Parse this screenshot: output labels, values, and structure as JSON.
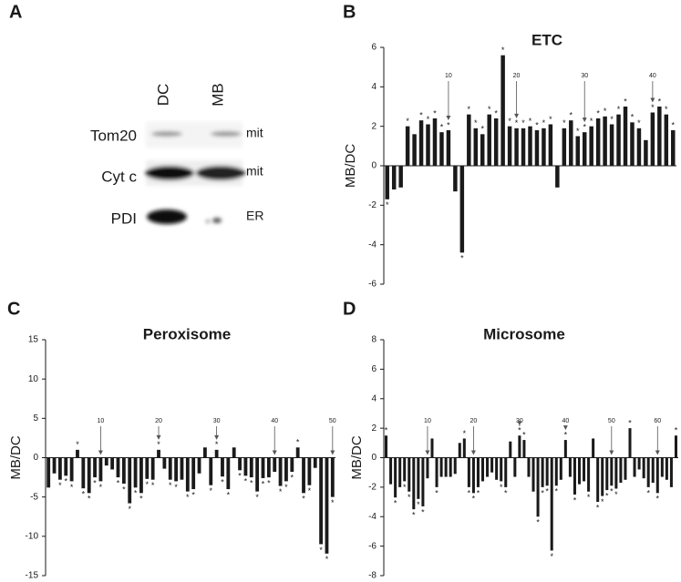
{
  "panel_labels": [
    "A",
    "B",
    "C",
    "D"
  ],
  "blot": {
    "lanes": [
      "DC",
      "MB"
    ],
    "rows": [
      "Tom20",
      "Cyt c",
      "PDI"
    ],
    "locations": [
      "mit",
      "mit",
      "ER"
    ]
  },
  "chart_data": [
    {
      "type": "bar",
      "title": "ETC",
      "y_label": "MB/DC",
      "color": "#1a1a1a",
      "categories": [
        null,
        null,
        null,
        null,
        null,
        null,
        null,
        null,
        null,
        "10",
        null,
        null,
        null,
        null,
        null,
        null,
        null,
        null,
        null,
        "20",
        null,
        null,
        null,
        null,
        null,
        null,
        null,
        null,
        null,
        "30",
        null,
        null,
        null,
        null,
        null,
        null,
        null,
        null,
        null,
        "40",
        null,
        null,
        null
      ],
      "values": [
        -1.7,
        -1.2,
        -1.1,
        2.0,
        1.6,
        2.3,
        2.1,
        2.4,
        1.7,
        1.8,
        -1.3,
        -4.4,
        2.6,
        1.9,
        1.6,
        2.6,
        2.4,
        5.6,
        2.0,
        1.9,
        1.9,
        2.0,
        1.8,
        1.9,
        2.1,
        -1.1,
        1.9,
        2.3,
        1.5,
        1.7,
        2.0,
        2.4,
        2.5,
        2.1,
        2.6,
        3.0,
        2.2,
        1.9,
        1.3,
        2.7,
        3.0,
        2.6,
        1.8
      ],
      "significance_marks": [
        "*",
        null,
        null,
        "*",
        null,
        "*",
        "*",
        "*",
        "*",
        "*",
        null,
        "*",
        "*",
        "*",
        "*",
        "*",
        "*",
        "*",
        "*",
        "*",
        "*",
        "*",
        "*",
        "*",
        "*",
        null,
        "*",
        "*",
        "*",
        "*",
        "*",
        "*",
        "*",
        "*",
        "*",
        "*",
        "*",
        "*",
        null,
        "*",
        "*",
        "*",
        "*"
      ],
      "ylim": [
        -6,
        6
      ],
      "yticks": [
        6,
        4,
        2,
        0,
        -2,
        -4,
        -6
      ]
    },
    {
      "type": "bar",
      "title": "Peroxisome",
      "y_label": "MB/DC",
      "color": "#1a1a1a",
      "categories": [
        null,
        null,
        null,
        null,
        null,
        null,
        null,
        null,
        null,
        "10",
        null,
        null,
        null,
        null,
        null,
        null,
        null,
        null,
        null,
        "20",
        null,
        null,
        null,
        null,
        null,
        null,
        null,
        null,
        null,
        "30",
        null,
        null,
        null,
        null,
        null,
        null,
        null,
        null,
        null,
        "40",
        null,
        null,
        null,
        null,
        null,
        null,
        null,
        null,
        null,
        "50"
      ],
      "values": [
        -3.8,
        -2.0,
        -2.8,
        -2.3,
        -3.0,
        1.0,
        -3.9,
        -4.5,
        -2.5,
        -3.0,
        -1.0,
        -1.5,
        -2.5,
        -3.3,
        -5.8,
        -3.8,
        -4.5,
        -2.7,
        -2.8,
        1.0,
        -1.4,
        -2.8,
        -3.0,
        -2.8,
        -4.3,
        -4.0,
        -2.0,
        1.3,
        -3.5,
        1.0,
        -2.4,
        -4.0,
        1.3,
        -1.6,
        -2.3,
        -2.5,
        -4.3,
        -2.6,
        -2.5,
        -1.8,
        -3.6,
        -3.0,
        -1.8,
        1.3,
        -4.5,
        -3.5,
        -1.3,
        -11.0,
        -12.2,
        -5.0
      ],
      "significance_marks": [
        null,
        null,
        "*",
        "*",
        "*",
        "*",
        "*",
        "*",
        "*",
        "*",
        null,
        null,
        "*",
        "*",
        "*",
        "*",
        "*",
        "*",
        "*",
        "*",
        null,
        "*",
        "*",
        null,
        "*",
        "*",
        null,
        null,
        "*",
        "*",
        "*",
        "*",
        null,
        "*",
        "*",
        "*",
        "*",
        "*",
        "*",
        null,
        "*",
        "*",
        "*",
        "*",
        "*",
        "*",
        null,
        "*",
        "*",
        "*"
      ],
      "ylim": [
        -15,
        15
      ],
      "yticks": [
        15,
        10,
        5,
        0,
        -5,
        -10,
        -15
      ]
    },
    {
      "type": "bar",
      "title": "Microsome",
      "y_label": "MB/DC",
      "color": "#1a1a1a",
      "categories": [
        null,
        null,
        null,
        null,
        null,
        null,
        null,
        null,
        null,
        "10",
        null,
        null,
        null,
        null,
        null,
        null,
        null,
        null,
        null,
        "20",
        null,
        null,
        null,
        null,
        null,
        null,
        null,
        null,
        null,
        "30",
        null,
        null,
        null,
        null,
        null,
        null,
        null,
        null,
        null,
        "40",
        null,
        null,
        null,
        null,
        null,
        null,
        null,
        null,
        null,
        "50",
        null,
        null,
        null,
        null,
        null,
        null,
        null,
        null,
        null,
        "60",
        null,
        null,
        null,
        null
      ],
      "values": [
        1.5,
        -1.8,
        -2.7,
        -2.0,
        -1.6,
        -2.3,
        -3.5,
        -2.8,
        -3.3,
        -1.4,
        1.3,
        -2.0,
        -1.3,
        -1.3,
        -1.3,
        -1.1,
        1.0,
        1.3,
        -2.0,
        -2.4,
        -2.0,
        -1.6,
        -1.3,
        -1.0,
        -1.5,
        -1.6,
        -2.0,
        1.1,
        -1.3,
        1.5,
        1.2,
        -1.3,
        -2.3,
        -4.0,
        -2.0,
        -1.9,
        -6.3,
        -1.9,
        -1.5,
        1.2,
        -1.3,
        -2.5,
        -1.8,
        -1.6,
        -2.3,
        1.3,
        -3.0,
        -2.6,
        -2.2,
        -1.9,
        -2.1,
        -1.7,
        -1.5,
        2.0,
        -1.3,
        -0.8,
        -1.4,
        -2.0,
        -1.7,
        -2.4,
        -1.3,
        -1.5,
        -2.0,
        1.5
      ],
      "significance_marks": [
        "*",
        null,
        "*",
        null,
        "*",
        "*",
        "*",
        "*",
        "*",
        null,
        null,
        "*",
        null,
        null,
        null,
        null,
        null,
        "*",
        "*",
        "*",
        "*",
        null,
        null,
        null,
        null,
        "*",
        "*",
        null,
        null,
        "*",
        "*",
        null,
        null,
        "*",
        "*",
        "*",
        "*",
        "*",
        null,
        "*",
        null,
        "*",
        null,
        null,
        "*",
        null,
        "*",
        "*",
        "*",
        "*",
        "*",
        null,
        null,
        "*",
        null,
        null,
        null,
        "*",
        null,
        "*",
        null,
        null,
        null,
        "*"
      ],
      "ylim": [
        -8,
        8
      ],
      "yticks": [
        8,
        6,
        4,
        2,
        0,
        -2,
        -4,
        -6,
        -8
      ]
    }
  ]
}
